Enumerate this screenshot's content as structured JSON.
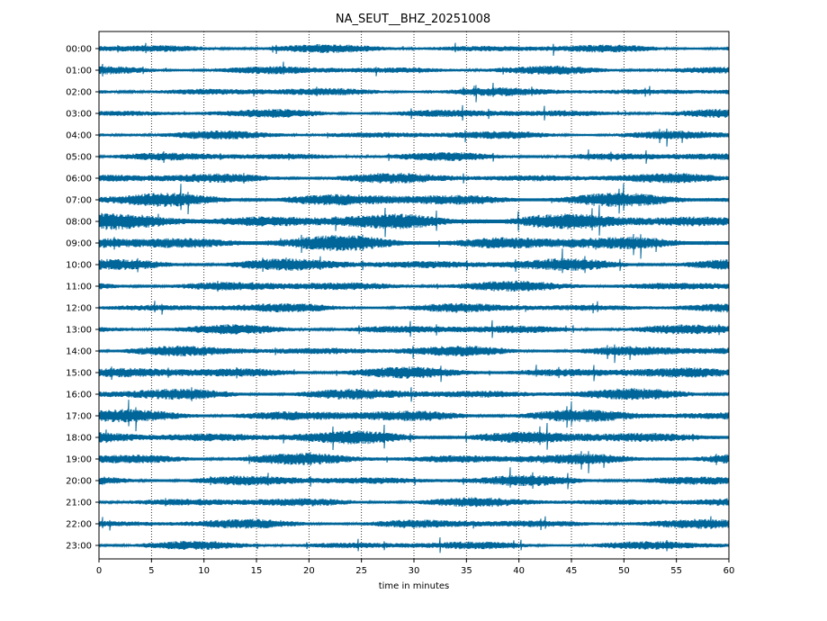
{
  "chart_data": {
    "type": "line",
    "title": "NA_SEUT__BHZ_20251008",
    "xlabel": "time in minutes",
    "ylabel": "",
    "xlim": [
      0,
      60
    ],
    "x_ticks": [
      0,
      5,
      10,
      15,
      20,
      25,
      30,
      35,
      40,
      45,
      50,
      55,
      60
    ],
    "x_gridlines": [
      5,
      10,
      15,
      20,
      25,
      30,
      35,
      40,
      45,
      50,
      55
    ],
    "grid": "vertical dotted",
    "trace_color": "#00669a",
    "rows": [
      {
        "label": "00:00",
        "amplitude": 0.18
      },
      {
        "label": "01:00",
        "amplitude": 0.18
      },
      {
        "label": "02:00",
        "amplitude": 0.18
      },
      {
        "label": "03:00",
        "amplitude": 0.18
      },
      {
        "label": "04:00",
        "amplitude": 0.18
      },
      {
        "label": "05:00",
        "amplitude": 0.18
      },
      {
        "label": "06:00",
        "amplitude": 0.22
      },
      {
        "label": "07:00",
        "amplitude": 0.28
      },
      {
        "label": "08:00",
        "amplitude": 0.34
      },
      {
        "label": "09:00",
        "amplitude": 0.32
      },
      {
        "label": "10:00",
        "amplitude": 0.26
      },
      {
        "label": "11:00",
        "amplitude": 0.22
      },
      {
        "label": "12:00",
        "amplitude": 0.2
      },
      {
        "label": "13:00",
        "amplitude": 0.2
      },
      {
        "label": "14:00",
        "amplitude": 0.22
      },
      {
        "label": "15:00",
        "amplitude": 0.24
      },
      {
        "label": "16:00",
        "amplitude": 0.24
      },
      {
        "label": "17:00",
        "amplitude": 0.26
      },
      {
        "label": "18:00",
        "amplitude": 0.28
      },
      {
        "label": "19:00",
        "amplitude": 0.24
      },
      {
        "label": "20:00",
        "amplitude": 0.22
      },
      {
        "label": "21:00",
        "amplitude": 0.2
      },
      {
        "label": "22:00",
        "amplitude": 0.2
      },
      {
        "label": "23:00",
        "amplitude": 0.18
      }
    ]
  }
}
